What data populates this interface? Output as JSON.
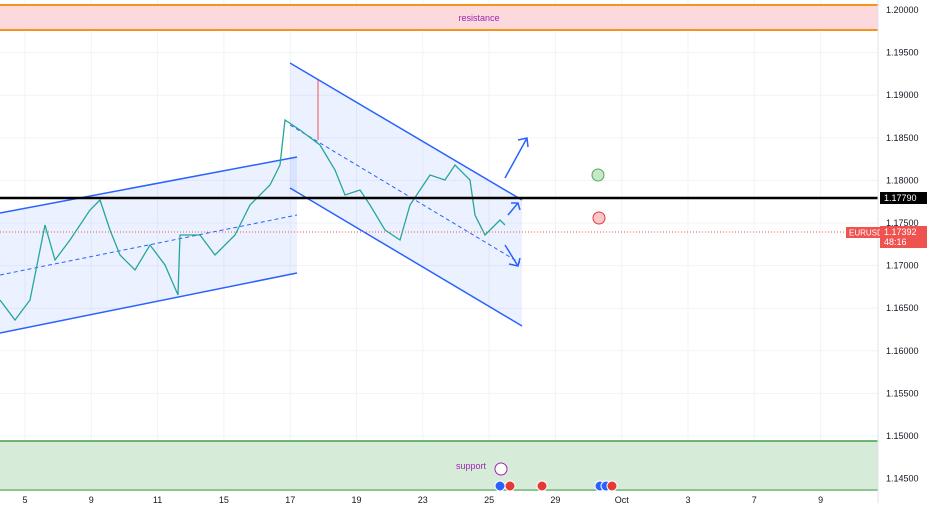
{
  "labels": {
    "resistance": "resistance",
    "support": "support"
  },
  "price_axis": [
    "1.20000",
    "1.19500",
    "1.19000",
    "1.18500",
    "1.18000",
    "1.17500",
    "1.17000",
    "1.16500",
    "1.16000",
    "1.15500",
    "1.15000",
    "1.14500"
  ],
  "time_axis": [
    "5",
    "9",
    "11",
    "15",
    "17",
    "19",
    "23",
    "25",
    "29",
    "Oct",
    "3",
    "7",
    "9"
  ],
  "level": "1.17790",
  "ticker": {
    "symbol": "EURUSD",
    "price": "1.17392",
    "countdown": "48:16"
  }
}
